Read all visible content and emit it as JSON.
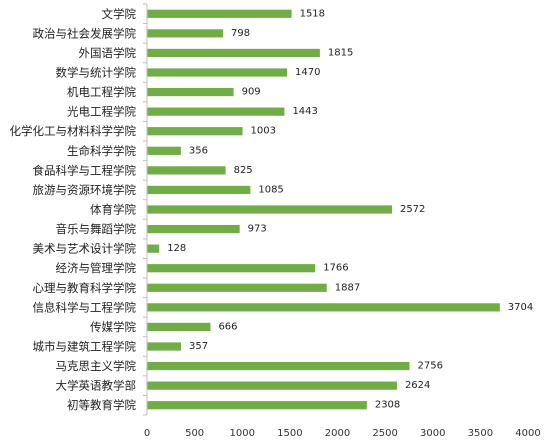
{
  "chart_data": {
    "type": "bar",
    "orientation": "horizontal",
    "categories": [
      "文学院",
      "政治与社会发展学院",
      "外国语学院",
      "数学与统计学院",
      "机电工程学院",
      "光电工程学院",
      "化学化工与材料科学学院",
      "生命科学学院",
      "食品科学与工程学院",
      "旅游与资源环境学院",
      "体育学院",
      "音乐与舞蹈学院",
      "美术与艺术设计学院",
      "经济与管理学院",
      "心理与教育科学学院",
      "信息科学与工程学院",
      "传媒学院",
      "城市与建筑工程学院",
      "马克思主义学院",
      "大学英语教学部",
      "初等教育学院"
    ],
    "values": [
      1518,
      798,
      1815,
      1470,
      909,
      1443,
      1003,
      356,
      825,
      1085,
      2572,
      973,
      128,
      1766,
      1887,
      3704,
      666,
      357,
      2756,
      2624,
      2308
    ],
    "xlim": [
      0,
      4000
    ],
    "xticks": [
      0,
      500,
      1000,
      1500,
      2000,
      2500,
      3000,
      3500,
      4000
    ],
    "title": "",
    "xlabel": "",
    "ylabel": "",
    "grid": false,
    "legend": "none",
    "bar_color": "#70AD47",
    "axis_color": "#BFBFBF"
  }
}
